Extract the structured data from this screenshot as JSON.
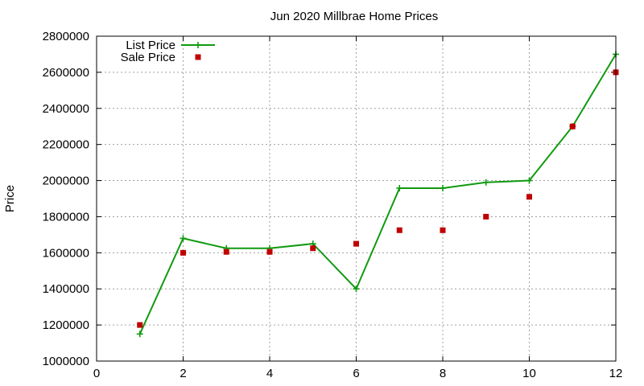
{
  "chart_data": {
    "type": "line",
    "title": "Jun 2020 Millbrae Home Prices",
    "xlabel": "",
    "ylabel": "Price",
    "xlim": [
      0,
      12
    ],
    "ylim": [
      1000000,
      2800000
    ],
    "xticks": [
      0,
      2,
      4,
      6,
      8,
      10,
      12
    ],
    "yticks": [
      1000000,
      1200000,
      1400000,
      1600000,
      1800000,
      2000000,
      2200000,
      2400000,
      2600000,
      2800000
    ],
    "grid": true,
    "legend_position": "top-left",
    "series": [
      {
        "name": "List Price",
        "style": "line-with-plus-markers",
        "color": "#109a10",
        "x": [
          1,
          2,
          3,
          4,
          5,
          6,
          7,
          8,
          9,
          10,
          11,
          12
        ],
        "y": [
          1150000,
          1680000,
          1625000,
          1625000,
          1650000,
          1400000,
          1958000,
          1958000,
          1990000,
          2000000,
          2300000,
          2700000
        ]
      },
      {
        "name": "Sale Price",
        "style": "square-points",
        "color": "#c00000",
        "x": [
          1,
          2,
          3,
          4,
          5,
          6,
          7,
          8,
          9,
          10,
          11,
          12
        ],
        "y": [
          1200000,
          1600000,
          1605000,
          1605000,
          1625000,
          1650000,
          1725000,
          1725000,
          1800000,
          1910000,
          2300000,
          2600000
        ]
      }
    ]
  }
}
